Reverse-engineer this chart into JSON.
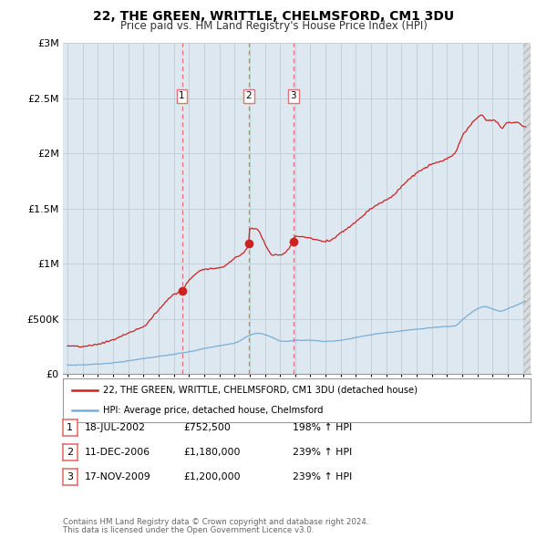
{
  "title": "22, THE GREEN, WRITTLE, CHELMSFORD, CM1 3DU",
  "subtitle": "Price paid vs. HM Land Registry's House Price Index (HPI)",
  "red_label": "22, THE GREEN, WRITTLE, CHELMSFORD, CM1 3DU (detached house)",
  "blue_label": "HPI: Average price, detached house, Chelmsford",
  "footer1": "Contains HM Land Registry data © Crown copyright and database right 2024.",
  "footer2": "This data is licensed under the Open Government Licence v3.0.",
  "transactions": [
    {
      "num": "1",
      "date": "18-JUL-2002",
      "price": "£752,500",
      "hpi": "198% ↑ HPI",
      "year": 2002.54,
      "price_val": 752500
    },
    {
      "num": "2",
      "date": "11-DEC-2006",
      "price": "£1,180,000",
      "hpi": "239% ↑ HPI",
      "year": 2006.95,
      "price_val": 1180000
    },
    {
      "num": "3",
      "date": "17-NOV-2009",
      "price": "£1,200,000",
      "hpi": "239% ↑ HPI",
      "year": 2009.88,
      "price_val": 1200000
    }
  ],
  "red_color": "#cc2222",
  "blue_color": "#7aaed6",
  "dashed_color": "#e87070",
  "plot_bg": "#dde8f0",
  "background_color": "#ffffff",
  "grid_color": "#c0cdd8",
  "ylim": [
    0,
    3000000
  ],
  "xlim_start": 1994.7,
  "xlim_end": 2025.5,
  "xticks": [
    1995,
    1996,
    1997,
    1998,
    1999,
    2000,
    2001,
    2002,
    2003,
    2004,
    2005,
    2006,
    2007,
    2008,
    2009,
    2010,
    2011,
    2012,
    2013,
    2014,
    2015,
    2016,
    2017,
    2018,
    2019,
    2020,
    2021,
    2022,
    2023,
    2024,
    2025
  ]
}
